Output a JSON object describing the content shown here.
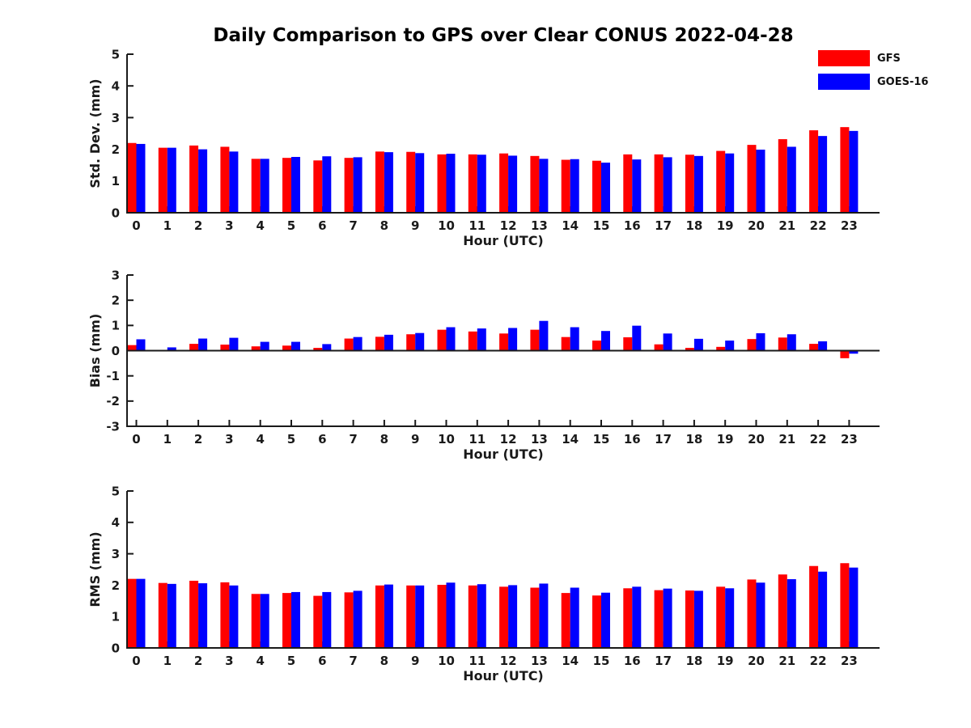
{
  "title": "Daily Comparison to GPS over Clear CONUS 2022-04-28",
  "colors": {
    "gfs": "#ff0000",
    "goes16": "#0000ff",
    "axis": "#1a1a1a",
    "background": "#ffffff"
  },
  "legend": {
    "position": "top-right",
    "entries": [
      {
        "label": "GFS",
        "color": "#ff0000"
      },
      {
        "label": "GOES-16",
        "color": "#0000ff"
      }
    ]
  },
  "chart_data": [
    {
      "type": "bar",
      "id": "std-dev",
      "title": "",
      "xlabel": "Hour (UTC)",
      "ylabel": "Std. Dev. (mm)",
      "ylim": [
        0,
        5
      ],
      "yticks": [
        0,
        1,
        2,
        3,
        4,
        5
      ],
      "grid": false,
      "categories": [
        "0",
        "1",
        "2",
        "3",
        "4",
        "5",
        "6",
        "7",
        "8",
        "9",
        "10",
        "11",
        "12",
        "13",
        "14",
        "15",
        "16",
        "17",
        "18",
        "19",
        "20",
        "21",
        "22",
        "23"
      ],
      "series": [
        {
          "name": "GFS",
          "color": "#ff0000",
          "values": [
            2.2,
            2.05,
            2.12,
            2.08,
            1.7,
            1.73,
            1.65,
            1.73,
            1.93,
            1.92,
            1.84,
            1.84,
            1.87,
            1.79,
            1.67,
            1.64,
            1.84,
            1.84,
            1.83,
            1.95,
            2.14,
            2.32,
            2.6,
            2.7
          ]
        },
        {
          "name": "GOES-16",
          "color": "#0000ff",
          "values": [
            2.17,
            2.05,
            2.0,
            1.93,
            1.7,
            1.76,
            1.78,
            1.75,
            1.91,
            1.88,
            1.86,
            1.83,
            1.8,
            1.7,
            1.69,
            1.58,
            1.68,
            1.75,
            1.79,
            1.87,
            1.99,
            2.08,
            2.42,
            2.58
          ]
        }
      ]
    },
    {
      "type": "bar",
      "id": "bias",
      "title": "",
      "xlabel": "Hour (UTC)",
      "ylabel": "Bias (mm)",
      "ylim": [
        -3,
        3
      ],
      "yticks": [
        -3,
        -2,
        -1,
        0,
        1,
        2,
        3
      ],
      "grid": false,
      "categories": [
        "0",
        "1",
        "2",
        "3",
        "4",
        "5",
        "6",
        "7",
        "8",
        "9",
        "10",
        "11",
        "12",
        "13",
        "14",
        "15",
        "16",
        "17",
        "18",
        "19",
        "20",
        "21",
        "22",
        "23"
      ],
      "series": [
        {
          "name": "GFS",
          "color": "#ff0000",
          "values": [
            0.22,
            0.03,
            0.27,
            0.24,
            0.17,
            0.2,
            0.11,
            0.48,
            0.55,
            0.65,
            0.83,
            0.76,
            0.68,
            0.83,
            0.54,
            0.4,
            0.53,
            0.25,
            0.11,
            0.15,
            0.46,
            0.52,
            0.27,
            -0.3
          ]
        },
        {
          "name": "GOES-16",
          "color": "#0000ff",
          "values": [
            0.45,
            0.13,
            0.48,
            0.51,
            0.35,
            0.35,
            0.26,
            0.54,
            0.63,
            0.7,
            0.93,
            0.88,
            0.9,
            1.18,
            0.93,
            0.78,
            0.99,
            0.68,
            0.47,
            0.4,
            0.69,
            0.65,
            0.37,
            -0.12
          ]
        }
      ]
    },
    {
      "type": "bar",
      "id": "rms",
      "title": "",
      "xlabel": "Hour (UTC)",
      "ylabel": "RMS (mm)",
      "ylim": [
        0,
        5
      ],
      "yticks": [
        0,
        1,
        2,
        3,
        4,
        5
      ],
      "grid": false,
      "categories": [
        "0",
        "1",
        "2",
        "3",
        "4",
        "5",
        "6",
        "7",
        "8",
        "9",
        "10",
        "11",
        "12",
        "13",
        "14",
        "15",
        "16",
        "17",
        "18",
        "19",
        "20",
        "21",
        "22",
        "23"
      ],
      "series": [
        {
          "name": "GFS",
          "color": "#ff0000",
          "values": [
            2.2,
            2.07,
            2.14,
            2.09,
            1.72,
            1.75,
            1.66,
            1.77,
            1.99,
            1.99,
            2.01,
            1.99,
            1.95,
            1.92,
            1.75,
            1.67,
            1.9,
            1.84,
            1.83,
            1.95,
            2.18,
            2.34,
            2.61,
            2.7
          ]
        },
        {
          "name": "GOES-16",
          "color": "#0000ff",
          "values": [
            2.2,
            2.04,
            2.06,
            1.99,
            1.72,
            1.78,
            1.78,
            1.82,
            2.02,
            1.99,
            2.08,
            2.03,
            2.0,
            2.05,
            1.92,
            1.76,
            1.95,
            1.89,
            1.82,
            1.9,
            2.08,
            2.19,
            2.43,
            2.56
          ]
        }
      ]
    }
  ]
}
